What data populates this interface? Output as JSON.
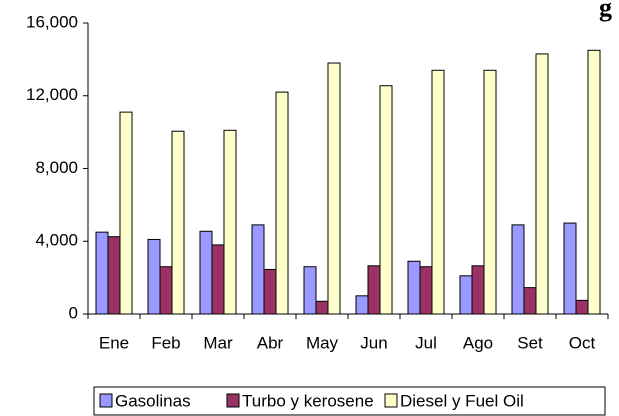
{
  "chart_data": {
    "type": "bar",
    "title": "g",
    "categories": [
      "Ene",
      "Feb",
      "Mar",
      "Abr",
      "May",
      "Jun",
      "Jul",
      "Ago",
      "Set",
      "Oct"
    ],
    "series": [
      {
        "name": "Gasolinas",
        "color": "#9999ff",
        "values": [
          4500,
          4100,
          4550,
          4900,
          2600,
          1000,
          2900,
          2100,
          4900,
          5000
        ]
      },
      {
        "name": "Turbo y kerosene",
        "color": "#993366",
        "values": [
          4250,
          2600,
          3800,
          2450,
          700,
          2650,
          2600,
          2650,
          1450,
          750
        ]
      },
      {
        "name": "Diesel y Fuel Oil",
        "color": "#ffffcc",
        "values": [
          11100,
          10050,
          10100,
          12200,
          13800,
          12550,
          13400,
          13400,
          14300,
          14500
        ]
      }
    ],
    "ylim": [
      0,
      16000
    ],
    "yticks": [
      0,
      {
        "value": 4000,
        "label": "4,000"
      },
      {
        "value": 8000,
        "label": "8,000"
      },
      {
        "value": 12000,
        "label": "12,000"
      },
      {
        "value": 16000,
        "label": "16,000"
      }
    ],
    "grid": false,
    "legend": "bottom"
  }
}
